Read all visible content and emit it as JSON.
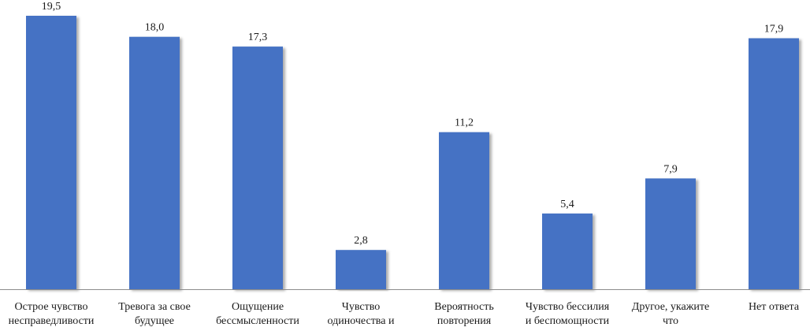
{
  "chart_data": {
    "type": "bar",
    "categories": [
      [
        "Острое чувство",
        "несправедливости"
      ],
      [
        "Тревога за свое",
        "будущее"
      ],
      [
        "Ощущение",
        "бессмысленности"
      ],
      [
        "Чувство",
        "одиночества и"
      ],
      [
        "Вероятность",
        "повторения"
      ],
      [
        "Чувство бессилия",
        "и беспомощности"
      ],
      [
        "Другое, укажите",
        "что"
      ],
      [
        "Нет ответа"
      ]
    ],
    "values": [
      19.5,
      18.0,
      17.3,
      2.8,
      11.2,
      5.4,
      7.9,
      17.9
    ],
    "value_labels": [
      "19,5",
      "18,0",
      "17,3",
      "2,8",
      "11,2",
      "5,4",
      "7,9",
      "17,9"
    ],
    "title": "",
    "xlabel": "",
    "ylabel": "",
    "ylim": [
      0,
      20
    ],
    "grid": false,
    "legend": "none",
    "colors": {
      "bar": "#4472c4",
      "bar_shadow": "#a9a9a9",
      "axis": "#8c8c8c",
      "text": "#1a1a1a"
    }
  }
}
